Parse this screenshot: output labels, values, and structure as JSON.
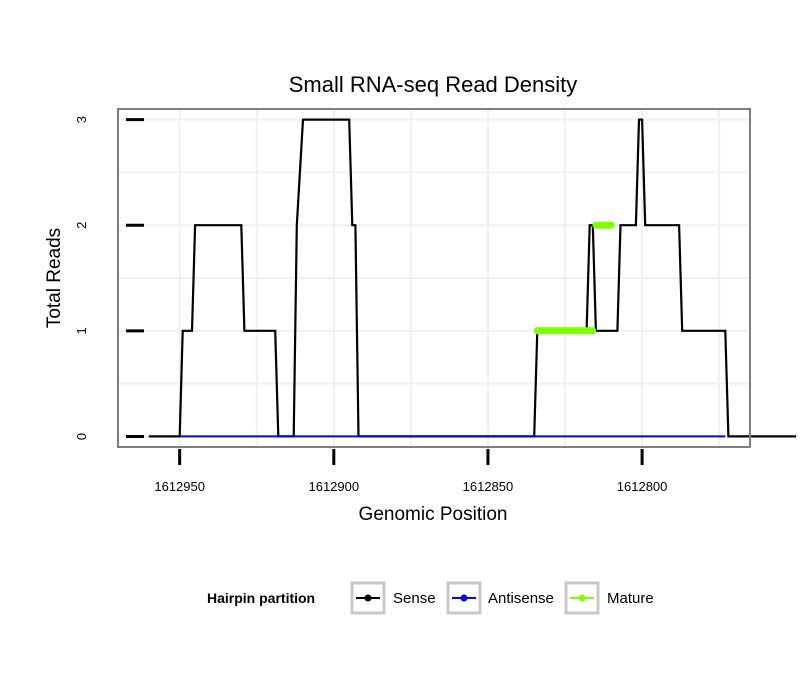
{
  "chart_data": {
    "type": "line",
    "title": "Small RNA-seq Read Density",
    "xlabel": "Genomic Position",
    "ylabel": "Total Reads",
    "xlim": [
      1612970,
      1612765
    ],
    "ylim": [
      -0.1,
      3.1
    ],
    "x_reversed": true,
    "x_ticks": [
      1612950,
      1612900,
      1612850,
      1612800
    ],
    "x_tick_labels": [
      "1612950",
      "1612900",
      "1612850",
      "1612800"
    ],
    "y_ticks": [
      0,
      1,
      2,
      3
    ],
    "y_tick_labels": [
      "0",
      "1",
      "2",
      "3"
    ],
    "grid": true,
    "legend": {
      "title": "Hairpin partition",
      "placement": "bottom",
      "entries": [
        {
          "name": "Sense",
          "color": "#000000"
        },
        {
          "name": "Antisense",
          "color": "#0000ff"
        },
        {
          "name": "Mature",
          "color": "#7fff00"
        }
      ]
    },
    "series": [
      {
        "name": "Sense",
        "color": "#000000",
        "x": [
          1612960,
          1612950,
          1612950,
          1612949,
          1612946,
          1612946,
          1612945,
          1612930,
          1612929,
          1612920,
          1612919,
          1612918,
          1612915,
          1612914,
          1612913,
          1612912,
          1612910,
          1612895,
          1612894,
          1612893,
          1612892,
          1612887,
          1612886,
          1612871,
          1612870,
          1612852,
          1612835,
          1612834,
          1612832,
          1612818,
          1612817,
          1612816,
          1612815,
          1612814,
          1612808,
          1612807,
          1612806,
          1612802,
          1612801,
          1612800,
          1612799,
          1612797,
          1612788,
          1612787,
          1612774,
          1612773,
          1612772,
          1612750
        ],
        "y": [
          0,
          0,
          0,
          1,
          1,
          1,
          2,
          2,
          1,
          1,
          1,
          0,
          0,
          0,
          0,
          2,
          3,
          3,
          2,
          2,
          0,
          0,
          0,
          0,
          0,
          0,
          0,
          1,
          1,
          1,
          2,
          2,
          1,
          1,
          1,
          2,
          2,
          2,
          3,
          3,
          2,
          2,
          2,
          1,
          1,
          1,
          0,
          0
        ]
      },
      {
        "name": "Antisense",
        "color": "#0000ff",
        "x": [
          1612950,
          1612773
        ],
        "y": [
          0,
          0
        ]
      },
      {
        "name": "Mature",
        "color": "#7fff00",
        "x": [
          1612834,
          1612816
        ],
        "y": [
          1,
          1
        ]
      },
      {
        "name": "Mature",
        "color": "#7fff00",
        "x": [
          1612815,
          1612810
        ],
        "y": [
          2,
          2
        ]
      }
    ]
  }
}
